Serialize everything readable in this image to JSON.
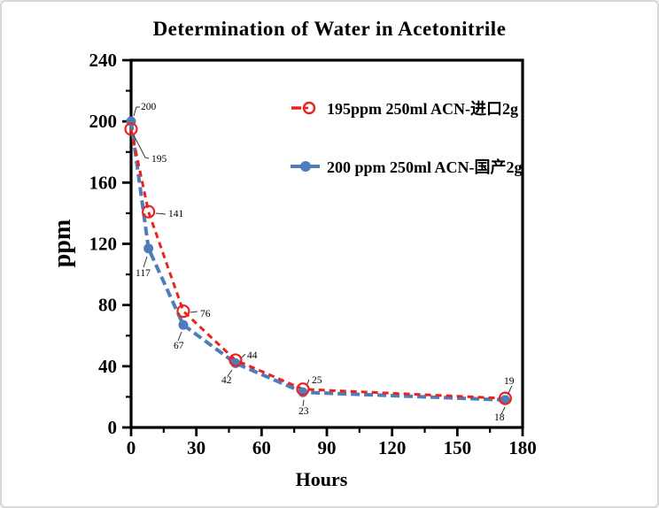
{
  "page": {
    "background": "#ffffff",
    "border_color": "#d8d8d8"
  },
  "chart_data": {
    "type": "line",
    "title": "Determination of Water in Acetonitrile",
    "xlabel": "Hours",
    "ylabel": "ppm",
    "xlim": [
      0,
      180
    ],
    "ylim": [
      0,
      240
    ],
    "x_ticks": [
      0,
      30,
      60,
      90,
      120,
      150,
      180
    ],
    "y_ticks": [
      0,
      40,
      80,
      120,
      160,
      200,
      240
    ],
    "x_minor_step": 15,
    "y_minor_step": 20,
    "grid": false,
    "legend_position": "upper-right-inside",
    "axis_color": "#000000",
    "series": [
      {
        "name": "195ppm  250ml ACN-进口2g",
        "color": "#e8251d",
        "line_style": "dashed",
        "marker": "open-circle",
        "x": [
          0,
          8,
          24,
          48,
          79,
          172
        ],
        "values": [
          195,
          141,
          76,
          44,
          25,
          19
        ],
        "point_labels": [
          "195",
          "141",
          "76",
          "44",
          "25",
          "19"
        ]
      },
      {
        "name": "200 ppm 250ml ACN-国产2g",
        "color": "#4f7cba",
        "line_style": "dashed",
        "marker": "filled-circle",
        "x": [
          0,
          8,
          24,
          48,
          79,
          172
        ],
        "values": [
          200,
          117,
          67,
          42,
          23,
          18
        ],
        "point_labels": [
          "200",
          "117",
          "67",
          "42",
          "23",
          "18"
        ]
      }
    ]
  }
}
